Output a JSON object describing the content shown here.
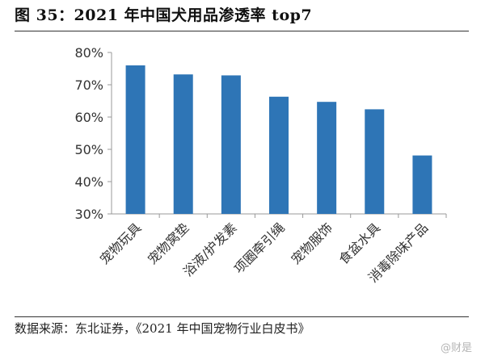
{
  "figure": {
    "title": "图 35：2021 年中国犬用品渗透率 top7",
    "source": "数据来源：东北证券，《2021 年中国宠物行业白皮书》",
    "watermark": "@财是"
  },
  "chart_data": {
    "type": "bar",
    "categories": [
      "宠物玩具",
      "宠物窝垫",
      "浴液/护发素",
      "项圈牵引绳",
      "宠物服饰",
      "食盆水具",
      "消毒除味产品"
    ],
    "values": [
      76,
      73.2,
      72.9,
      66.3,
      64.7,
      62.4,
      48.1
    ],
    "yticks": [
      "30%",
      "40%",
      "50%",
      "60%",
      "70%",
      "80%"
    ],
    "ylim": [
      30,
      80
    ],
    "bar_color": "#2e75b6",
    "grid": false,
    "legend": "none"
  }
}
